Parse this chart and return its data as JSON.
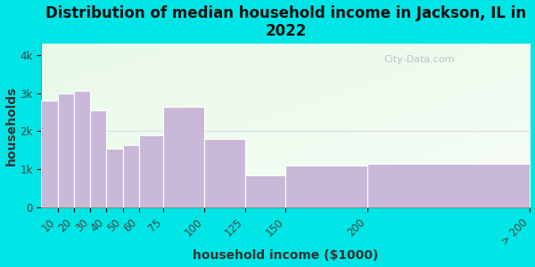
{
  "title": "Distribution of median household income in Jackson, IL in\n2022",
  "xlabel": "household income ($1000)",
  "ylabel": "households",
  "bin_edges": [
    0,
    10,
    20,
    30,
    40,
    50,
    60,
    75,
    100,
    125,
    150,
    200,
    300
  ],
  "bin_labels": [
    "10",
    "20",
    "30",
    "40",
    "50",
    "60",
    "75",
    "100",
    "125",
    "150",
    "200",
    "> 200"
  ],
  "values": [
    2800,
    3000,
    3050,
    2550,
    1550,
    1650,
    1900,
    2650,
    1800,
    850,
    1100,
    1150
  ],
  "bar_color": "#c9b8d8",
  "bar_edge_color": "#ffffff",
  "background_color": "#00e5e5",
  "title_fontsize": 12,
  "label_fontsize": 10,
  "tick_fontsize": 8.5,
  "yticks": [
    0,
    1000,
    2000,
    3000,
    4000
  ],
  "ytick_labels": [
    "0",
    "1k",
    "2k",
    "3k",
    "4k"
  ],
  "ylim": [
    0,
    4300
  ],
  "watermark": "City-Data.com"
}
